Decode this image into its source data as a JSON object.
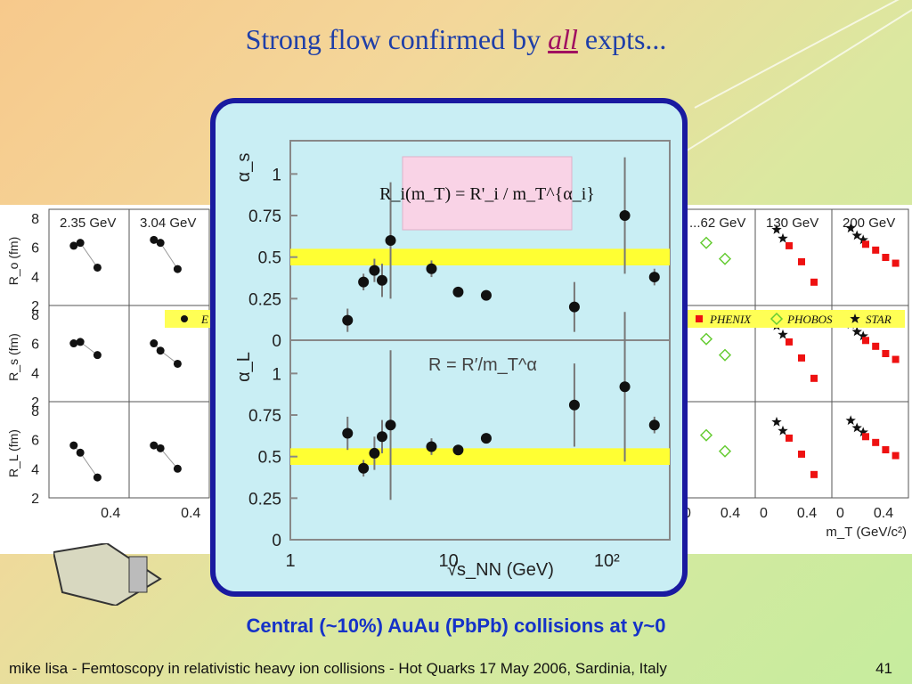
{
  "slide": {
    "title_prefix": "Strong flow confirmed by ",
    "title_emph": "all",
    "title_suffix": " expts...",
    "caption": "Central (~10%) AuAu (PbPb) collisions at y~0",
    "footer": "mike lisa - Femtoscopy in relativistic heavy ion collisions - Hot Quarks 17 May 2006, Sardinia, Italy",
    "page_number": "41"
  },
  "colors": {
    "title": "#1f3fa8",
    "title_emph": "#a01060",
    "caption": "#1532c8",
    "frame": "#1a1aa0",
    "band": "#ffff33",
    "formula_bg": "#f9d3e6"
  },
  "chart_data": [
    {
      "type": "scatter",
      "panel": "back-figure",
      "columns": [
        "2.35 GeV",
        "3.04 GeV",
        "...62 GeV",
        "130 GeV",
        "200 GeV"
      ],
      "row_labels": [
        "R_o (fm)",
        "R_s (fm)",
        "R_L (fm)"
      ],
      "yticks": [
        "2",
        "4",
        "6",
        "8"
      ],
      "xticks": [
        "0",
        "0.4"
      ],
      "xlabel": "m_T (GeV/c²)",
      "legend": [
        {
          "name": "PHENIX",
          "marker": "square",
          "color": "#ee1111"
        },
        {
          "name": "PHOBOS",
          "marker": "diamond",
          "color": "#66cc33"
        },
        {
          "name": "STAR",
          "marker": "star",
          "color": "#111111"
        }
      ],
      "legend_first_letter": "E",
      "series": [
        {
          "column": "2.35 GeV",
          "row": "R_o (fm)",
          "x": [
            0.12,
            0.17,
            0.3
          ],
          "y": [
            6.1,
            6.3,
            4.6
          ]
        },
        {
          "column": "2.35 GeV",
          "row": "R_s (fm)",
          "x": [
            0.12,
            0.17,
            0.3
          ],
          "y": [
            6.0,
            6.1,
            5.2
          ]
        },
        {
          "column": "2.35 GeV",
          "row": "R_L (fm)",
          "x": [
            0.12,
            0.17,
            0.3
          ],
          "y": [
            5.6,
            5.1,
            3.4
          ]
        },
        {
          "column": "3.04 GeV",
          "row": "R_o (fm)",
          "x": [
            0.12,
            0.17,
            0.3
          ],
          "y": [
            6.5,
            6.3,
            4.5
          ]
        },
        {
          "column": "3.04 GeV",
          "row": "R_s (fm)",
          "x": [
            0.12,
            0.17,
            0.3
          ],
          "y": [
            6.0,
            5.5,
            4.6
          ]
        },
        {
          "column": "3.04 GeV",
          "row": "R_L (fm)",
          "x": [
            0.12,
            0.17,
            0.3
          ],
          "y": [
            5.6,
            5.4,
            4.0
          ]
        }
      ]
    },
    {
      "type": "scatter",
      "panel": "front-figure",
      "formula": "R_i(m_T) = R'_i / m_T^{α_i}",
      "annotation": "R = R′/m_T^α",
      "xlabel": "√s_NN (GeV)",
      "xscale": "log",
      "xlim": [
        1,
        250
      ],
      "xticks": [
        "1",
        "10",
        "10²"
      ],
      "yticks": [
        "0",
        "0.25",
        "0.5",
        "0.75",
        "1"
      ],
      "top": {
        "ylabel": "α_s",
        "ylim": [
          0,
          1.2
        ],
        "band": [
          0.45,
          0.55
        ],
        "x": [
          2.3,
          2.9,
          3.4,
          3.8,
          4.3,
          7.8,
          11.5,
          17.3,
          62.4,
          130,
          200
        ],
        "y": [
          0.12,
          0.35,
          0.42,
          0.36,
          0.6,
          0.43,
          0.29,
          0.27,
          0.2,
          0.75,
          0.38
        ],
        "err": [
          0.07,
          0.05,
          0.07,
          0.1,
          0.35,
          0.05,
          0.03,
          0.02,
          0.15,
          0.35,
          0.05
        ]
      },
      "bottom": {
        "ylabel": "α_L",
        "ylim": [
          0,
          1.2
        ],
        "band": [
          0.45,
          0.55
        ],
        "x": [
          2.3,
          2.9,
          3.4,
          3.8,
          4.3,
          7.8,
          11.5,
          17.3,
          62.4,
          130,
          200
        ],
        "y": [
          0.64,
          0.43,
          0.52,
          0.62,
          0.69,
          0.56,
          0.54,
          0.61,
          0.81,
          0.92,
          0.69
        ],
        "err": [
          0.1,
          0.05,
          0.1,
          0.1,
          0.45,
          0.05,
          0.03,
          0.02,
          0.25,
          0.45,
          0.05
        ]
      }
    }
  ]
}
